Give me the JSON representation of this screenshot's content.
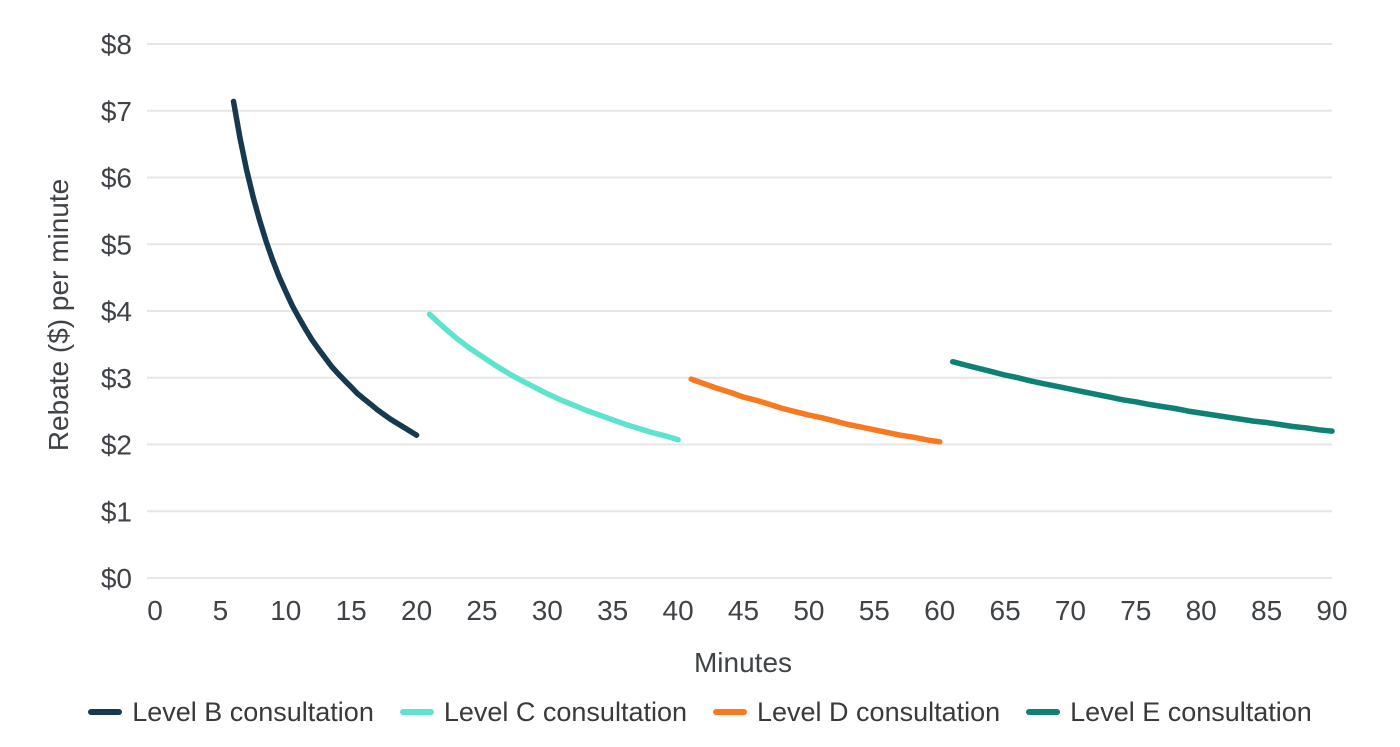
{
  "chart_data": {
    "type": "line",
    "title": "",
    "xlabel": "Minutes",
    "ylabel": "Rebate ($) per minute",
    "xlim": [
      0,
      90
    ],
    "ylim": [
      0,
      8
    ],
    "x_ticks": [
      0,
      5,
      10,
      15,
      20,
      25,
      30,
      35,
      40,
      45,
      50,
      55,
      60,
      65,
      70,
      75,
      80,
      85,
      90
    ],
    "y_ticks": [
      0,
      1,
      2,
      3,
      4,
      5,
      6,
      7,
      8
    ],
    "y_tick_labels": [
      "$0",
      "$1",
      "$2",
      "$3",
      "$4",
      "$5",
      "$6",
      "$7",
      "$8"
    ],
    "grid": "horizontal-only",
    "legend_position": "bottom-center",
    "series": [
      {
        "name": "Level B consultation",
        "color": "#17394f",
        "x": [
          6,
          6.5,
          7,
          7.5,
          8,
          8.5,
          9,
          9.5,
          10,
          10.5,
          11,
          11.5,
          12,
          12.5,
          13,
          13.5,
          14,
          14.5,
          15,
          15.5,
          16,
          16.5,
          17,
          17.5,
          18,
          18.5,
          19,
          19.5,
          20
        ],
        "y": [
          7.14,
          6.59,
          6.12,
          5.71,
          5.36,
          5.04,
          4.76,
          4.51,
          4.29,
          4.08,
          3.9,
          3.73,
          3.57,
          3.43,
          3.3,
          3.17,
          3.06,
          2.96,
          2.86,
          2.76,
          2.68,
          2.6,
          2.52,
          2.45,
          2.38,
          2.32,
          2.26,
          2.2,
          2.14
        ]
      },
      {
        "name": "Level C consultation",
        "color": "#5de4ce",
        "x": [
          21,
          22,
          23,
          24,
          25,
          26,
          27,
          28,
          29,
          30,
          31,
          32,
          33,
          34,
          35,
          36,
          37,
          38,
          39,
          40
        ],
        "y": [
          3.95,
          3.77,
          3.6,
          3.45,
          3.32,
          3.19,
          3.07,
          2.96,
          2.86,
          2.76,
          2.67,
          2.59,
          2.51,
          2.44,
          2.37,
          2.3,
          2.24,
          2.18,
          2.13,
          2.07
        ]
      },
      {
        "name": "Level D consultation",
        "color": "#f8791f",
        "x": [
          41,
          42,
          43,
          44,
          45,
          46,
          47,
          48,
          49,
          50,
          51,
          52,
          53,
          54,
          55,
          56,
          57,
          58,
          59,
          60
        ],
        "y": [
          2.98,
          2.91,
          2.84,
          2.78,
          2.71,
          2.66,
          2.6,
          2.54,
          2.49,
          2.44,
          2.4,
          2.35,
          2.3,
          2.26,
          2.22,
          2.18,
          2.14,
          2.11,
          2.07,
          2.04
        ]
      },
      {
        "name": "Level E consultation",
        "color": "#0d8173",
        "x": [
          61,
          62,
          63,
          64,
          65,
          66,
          67,
          68,
          69,
          70,
          71,
          72,
          73,
          74,
          75,
          76,
          77,
          78,
          79,
          80,
          81,
          82,
          83,
          84,
          85,
          86,
          87,
          88,
          89,
          90
        ],
        "y": [
          3.24,
          3.19,
          3.14,
          3.09,
          3.04,
          3.0,
          2.95,
          2.91,
          2.87,
          2.83,
          2.79,
          2.75,
          2.71,
          2.67,
          2.64,
          2.6,
          2.57,
          2.54,
          2.5,
          2.47,
          2.44,
          2.41,
          2.38,
          2.35,
          2.33,
          2.3,
          2.27,
          2.25,
          2.22,
          2.2
        ]
      }
    ]
  },
  "colors": {
    "background": "#ffffff",
    "grid": "#e6e6e6",
    "tick_text": "#3f4347",
    "axis_title_text": "#3f4347",
    "legend_text": "#3a3a3a"
  }
}
